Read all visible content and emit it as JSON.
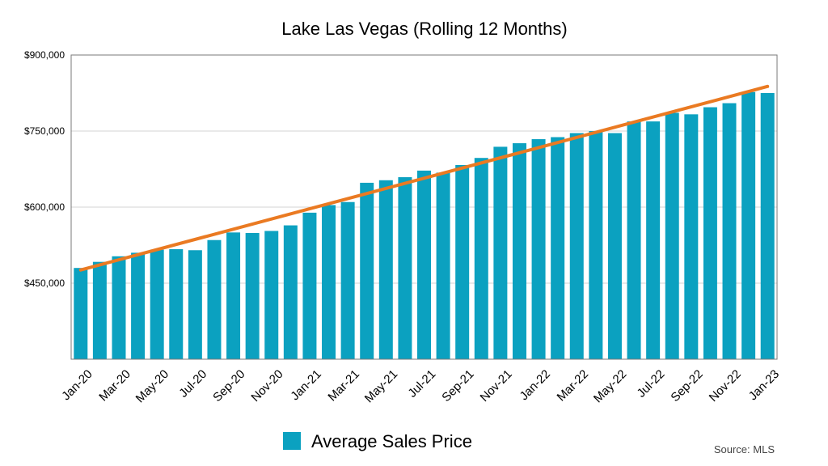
{
  "chart_data": {
    "type": "bar",
    "title": "Lake Las Vegas (Rolling 12 Months)",
    "source": "Source: MLS",
    "ylim": [
      300000,
      900000
    ],
    "yticks": [
      450000,
      600000,
      750000,
      900000
    ],
    "ytick_labels": [
      "$450,000",
      "$600,000",
      "$750,000",
      "$900,000"
    ],
    "grid": true,
    "legend_position": "bottom",
    "categories": [
      "Jan-20",
      "Feb-20",
      "Mar-20",
      "Apr-20",
      "May-20",
      "Jun-20",
      "Jul-20",
      "Aug-20",
      "Sep-20",
      "Oct-20",
      "Nov-20",
      "Dec-20",
      "Jan-21",
      "Feb-21",
      "Mar-21",
      "Apr-21",
      "May-21",
      "Jun-21",
      "Jul-21",
      "Aug-21",
      "Sep-21",
      "Oct-21",
      "Nov-21",
      "Dec-21",
      "Jan-22",
      "Feb-22",
      "Mar-22",
      "Apr-22",
      "May-22",
      "Jun-22",
      "Jul-22",
      "Aug-22",
      "Sep-22",
      "Oct-22",
      "Nov-22",
      "Dec-22",
      "Jan-23"
    ],
    "xtick_labels": [
      "Jan-20",
      "Mar-20",
      "May-20",
      "Jul-20",
      "Sep-20",
      "Nov-20",
      "Jan-21",
      "Mar-21",
      "May-21",
      "Jul-21",
      "Sep-21",
      "Nov-21",
      "Jan-22",
      "Mar-22",
      "May-22",
      "Jul-22",
      "Sep-22",
      "Nov-22",
      "Jan-23"
    ],
    "series": [
      {
        "name": "Average Sales Price",
        "color": "#0ba1c0",
        "values": [
          480000,
          492000,
          503000,
          510000,
          516000,
          517000,
          515000,
          535000,
          550000,
          549000,
          553000,
          564000,
          589000,
          604000,
          610000,
          648000,
          653000,
          659000,
          672000,
          668000,
          683000,
          697000,
          719000,
          726000,
          734000,
          738000,
          746000,
          750000,
          746000,
          769000,
          769000,
          786000,
          783000,
          797000,
          805000,
          827000,
          825000
        ]
      }
    ],
    "trendline": {
      "color": "#ea7a22",
      "start": 476000,
      "end": 838000
    }
  }
}
